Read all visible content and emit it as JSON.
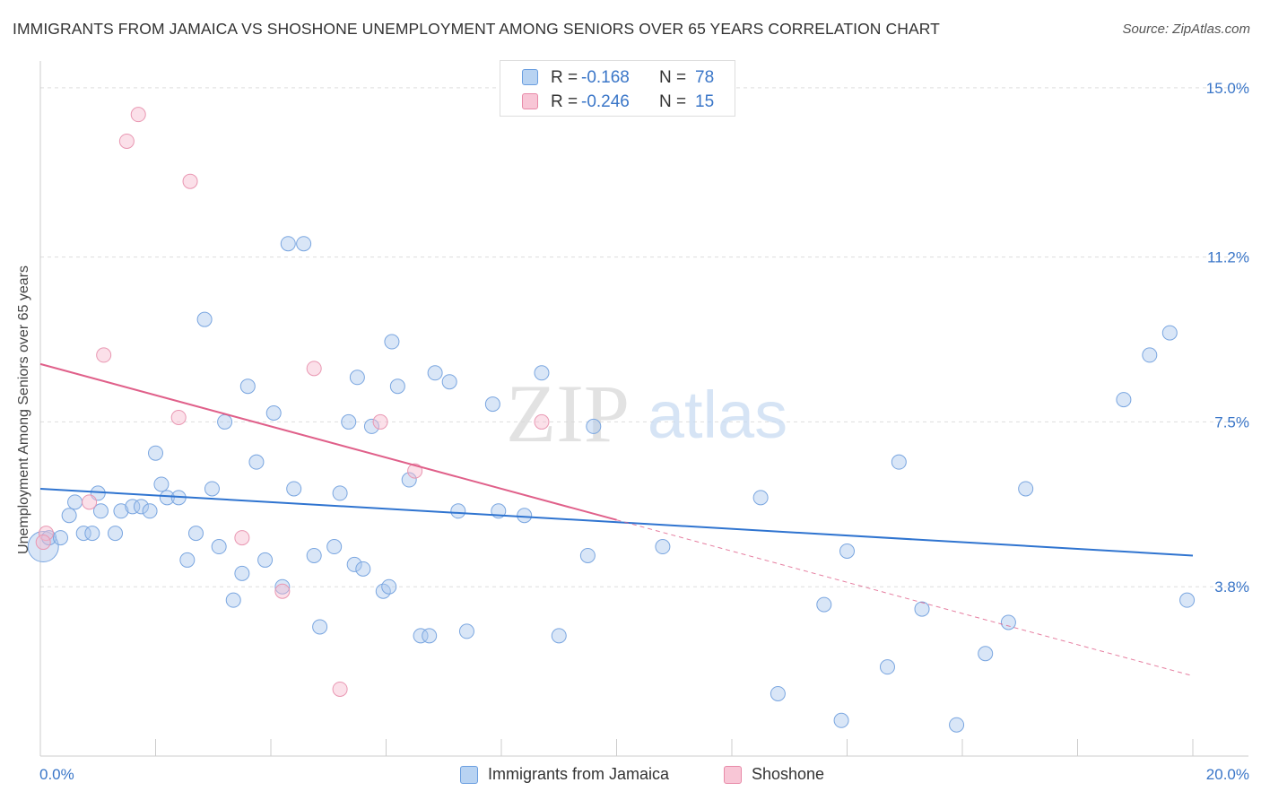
{
  "title": "IMMIGRANTS FROM JAMAICA VS SHOSHONE UNEMPLOYMENT AMONG SENIORS OVER 65 YEARS CORRELATION CHART",
  "source": "Source: ZipAtlas.com",
  "watermark": {
    "zip": "ZIP",
    "atlas": "atlas"
  },
  "legend": {
    "series": [
      {
        "r_label": "R =",
        "r_value": "-0.168",
        "n_label": "N =",
        "n_value": "78",
        "fill": "#b8d3f2",
        "stroke": "#6a9ee0"
      },
      {
        "r_label": "R =",
        "r_value": "-0.246",
        "n_label": "N =",
        "n_value": "15",
        "fill": "#f8c6d6",
        "stroke": "#e88aa8"
      }
    ]
  },
  "bottom_legend": [
    "Immigrants from Jamaica",
    "Shoshone"
  ],
  "colors": {
    "blue_fill": "rgba(170,200,238,0.45)",
    "blue_stroke": "#7aa6e0",
    "blue_line": "#2f74d0",
    "pink_fill": "rgba(246,186,206,0.45)",
    "pink_stroke": "#e997b2",
    "pink_line": "#e0608a",
    "grid": "#dddddd",
    "tick_label": "#3a76c8"
  },
  "chart_data": {
    "type": "scatter",
    "title": "IMMIGRANTS FROM JAMAICA VS SHOSHONE UNEMPLOYMENT AMONG SENIORS OVER 65 YEARS CORRELATION CHART",
    "xlabel": "",
    "ylabel": "Unemployment Among Seniors over 65 years",
    "xlim": [
      0,
      20
    ],
    "ylim": [
      0,
      15.4
    ],
    "x_tick_labels": [
      "0.0%",
      "20.0%"
    ],
    "y_ticks": [
      3.8,
      7.5,
      11.2,
      15.0
    ],
    "y_tick_labels": [
      "3.8%",
      "7.5%",
      "11.2%",
      "15.0%"
    ],
    "series": [
      {
        "name": "Immigrants from Jamaica",
        "r": -0.168,
        "n": 78,
        "trend": {
          "x0": 0,
          "y0": 6.0,
          "x1": 20,
          "y1": 4.5
        },
        "points": [
          [
            0.05,
            4.7
          ],
          [
            0.15,
            4.9
          ],
          [
            0.35,
            4.9
          ],
          [
            0.5,
            5.4
          ],
          [
            0.6,
            5.7
          ],
          [
            0.75,
            5.0
          ],
          [
            0.9,
            5.0
          ],
          [
            1.0,
            5.9
          ],
          [
            1.05,
            5.5
          ],
          [
            1.3,
            5.0
          ],
          [
            1.4,
            5.5
          ],
          [
            1.6,
            5.6
          ],
          [
            1.75,
            5.6
          ],
          [
            1.9,
            5.5
          ],
          [
            2.0,
            6.8
          ],
          [
            2.1,
            6.1
          ],
          [
            2.2,
            5.8
          ],
          [
            2.4,
            5.8
          ],
          [
            2.55,
            4.4
          ],
          [
            2.7,
            5.0
          ],
          [
            2.85,
            9.8
          ],
          [
            2.98,
            6.0
          ],
          [
            3.1,
            4.7
          ],
          [
            3.2,
            7.5
          ],
          [
            3.35,
            3.5
          ],
          [
            3.5,
            4.1
          ],
          [
            3.6,
            8.3
          ],
          [
            3.75,
            6.6
          ],
          [
            3.9,
            4.4
          ],
          [
            4.05,
            7.7
          ],
          [
            4.2,
            3.8
          ],
          [
            4.3,
            11.5
          ],
          [
            4.4,
            6.0
          ],
          [
            4.57,
            11.5
          ],
          [
            4.75,
            4.5
          ],
          [
            4.85,
            2.9
          ],
          [
            5.1,
            4.7
          ],
          [
            5.2,
            5.9
          ],
          [
            5.35,
            7.5
          ],
          [
            5.45,
            4.3
          ],
          [
            5.5,
            8.5
          ],
          [
            5.6,
            4.2
          ],
          [
            5.75,
            7.4
          ],
          [
            5.95,
            3.7
          ],
          [
            6.05,
            3.8
          ],
          [
            6.1,
            9.3
          ],
          [
            6.2,
            8.3
          ],
          [
            6.4,
            6.2
          ],
          [
            6.6,
            2.7
          ],
          [
            6.75,
            2.7
          ],
          [
            6.85,
            8.6
          ],
          [
            7.1,
            8.4
          ],
          [
            7.25,
            5.5
          ],
          [
            7.4,
            2.8
          ],
          [
            7.85,
            7.9
          ],
          [
            7.95,
            5.5
          ],
          [
            8.4,
            5.4
          ],
          [
            8.7,
            8.6
          ],
          [
            9.0,
            2.7
          ],
          [
            9.5,
            4.5
          ],
          [
            9.6,
            7.4
          ],
          [
            10.8,
            4.7
          ],
          [
            12.5,
            5.8
          ],
          [
            12.8,
            1.4
          ],
          [
            13.6,
            3.4
          ],
          [
            13.9,
            0.8
          ],
          [
            14.0,
            4.6
          ],
          [
            14.7,
            2.0
          ],
          [
            14.9,
            6.6
          ],
          [
            15.3,
            3.3
          ],
          [
            15.9,
            0.7
          ],
          [
            16.4,
            2.3
          ],
          [
            16.8,
            3.0
          ],
          [
            17.1,
            6.0
          ],
          [
            18.8,
            8.0
          ],
          [
            19.25,
            9.0
          ],
          [
            19.6,
            9.5
          ],
          [
            19.9,
            3.5
          ]
        ]
      },
      {
        "name": "Shoshone",
        "r": -0.246,
        "n": 15,
        "trend": {
          "x0": 0,
          "y0": 8.8,
          "x1": 10,
          "y1": 5.3
        },
        "trend_dashed_end": {
          "x": 20,
          "y": 1.8
        },
        "points": [
          [
            0.1,
            5.0
          ],
          [
            0.85,
            5.7
          ],
          [
            1.1,
            9.0
          ],
          [
            1.5,
            13.8
          ],
          [
            1.7,
            14.4
          ],
          [
            2.4,
            7.6
          ],
          [
            2.6,
            12.9
          ],
          [
            3.5,
            4.9
          ],
          [
            4.2,
            3.7
          ],
          [
            4.75,
            8.7
          ],
          [
            5.2,
            1.5
          ],
          [
            5.9,
            7.5
          ],
          [
            6.5,
            6.4
          ],
          [
            8.7,
            7.5
          ],
          [
            0.05,
            4.8
          ]
        ]
      }
    ]
  }
}
